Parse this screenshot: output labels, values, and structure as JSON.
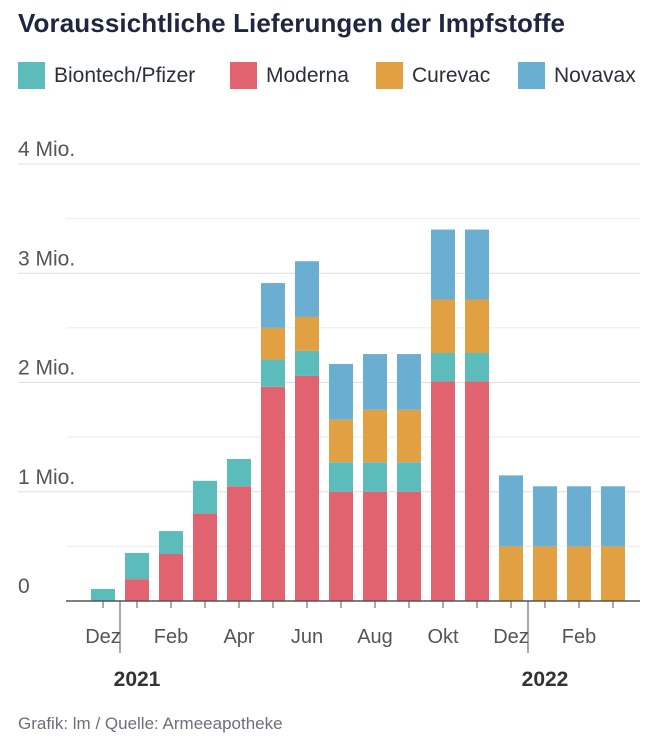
{
  "title": "Voraussichtliche Lieferungen der Impfstoffe",
  "footer": "Grafik: lm / Quelle: Armeeapotheke",
  "colors": {
    "biontech": "#5bbcbb",
    "moderna": "#e0636f",
    "curevac": "#e1a042",
    "novavax": "#6aaed1",
    "grid": "#dedede",
    "axis": "#555555",
    "text": "#555555"
  },
  "legend": [
    {
      "key": "biontech",
      "label": "Biontech/Pfizer"
    },
    {
      "key": "moderna",
      "label": "Moderna"
    },
    {
      "key": "curevac",
      "label": "Curevac"
    },
    {
      "key": "novavax",
      "label": "Novavax"
    }
  ],
  "chart_data": {
    "type": "bar",
    "stacked": true,
    "title": "Voraussichtliche Lieferungen der Impfstoffe",
    "ylim": [
      0,
      4000000
    ],
    "y_ticks": [
      {
        "value": 0,
        "label": "0"
      },
      {
        "value": 1000000,
        "label": "1 Mio."
      },
      {
        "value": 2000000,
        "label": "2 Mio."
      },
      {
        "value": 3000000,
        "label": "3 Mio."
      },
      {
        "value": 4000000,
        "label": "4 Mio."
      }
    ],
    "minor_gridlines": [
      500000,
      1500000,
      2500000,
      3500000
    ],
    "categories": [
      "Dez 2020",
      "Jan 2021",
      "Feb 2021",
      "Mär 2021",
      "Apr 2021",
      "Mai 2021",
      "Jun 2021",
      "Jul 2021",
      "Aug 2021",
      "Sep 2021",
      "Okt 2021",
      "Nov 2021",
      "Dez 2021",
      "Jan 2022",
      "Feb 2022",
      "Mär 2022"
    ],
    "x_tick_labels": [
      {
        "index": 0,
        "label": "Dez"
      },
      {
        "index": 2,
        "label": "Feb"
      },
      {
        "index": 4,
        "label": "Apr"
      },
      {
        "index": 6,
        "label": "Jun"
      },
      {
        "index": 8,
        "label": "Aug"
      },
      {
        "index": 10,
        "label": "Okt"
      },
      {
        "index": 12,
        "label": "Dez"
      },
      {
        "index": 14,
        "label": "Feb"
      }
    ],
    "year_labels": [
      {
        "index": 1,
        "label": "2021"
      },
      {
        "index": 13,
        "label": "2022"
      }
    ],
    "series": [
      {
        "key": "moderna",
        "name": "Moderna",
        "values": [
          0,
          200000,
          430000,
          800000,
          1050000,
          1960000,
          2060000,
          1000000,
          1000000,
          1000000,
          2010000,
          2010000,
          0,
          0,
          0,
          0
        ]
      },
      {
        "key": "biontech",
        "name": "Biontech/Pfizer",
        "values": [
          110000,
          240000,
          210000,
          300000,
          250000,
          250000,
          230000,
          270000,
          270000,
          270000,
          260000,
          260000,
          0,
          0,
          0,
          0
        ]
      },
      {
        "key": "curevac",
        "name": "Curevac",
        "values": [
          0,
          0,
          0,
          0,
          0,
          290000,
          310000,
          390000,
          480000,
          480000,
          490000,
          490000,
          500000,
          500000,
          500000,
          500000
        ]
      },
      {
        "key": "novavax",
        "name": "Novavax",
        "values": [
          0,
          0,
          0,
          0,
          0,
          410000,
          510000,
          510000,
          510000,
          510000,
          640000,
          640000,
          650000,
          550000,
          550000,
          550000
        ]
      }
    ]
  }
}
